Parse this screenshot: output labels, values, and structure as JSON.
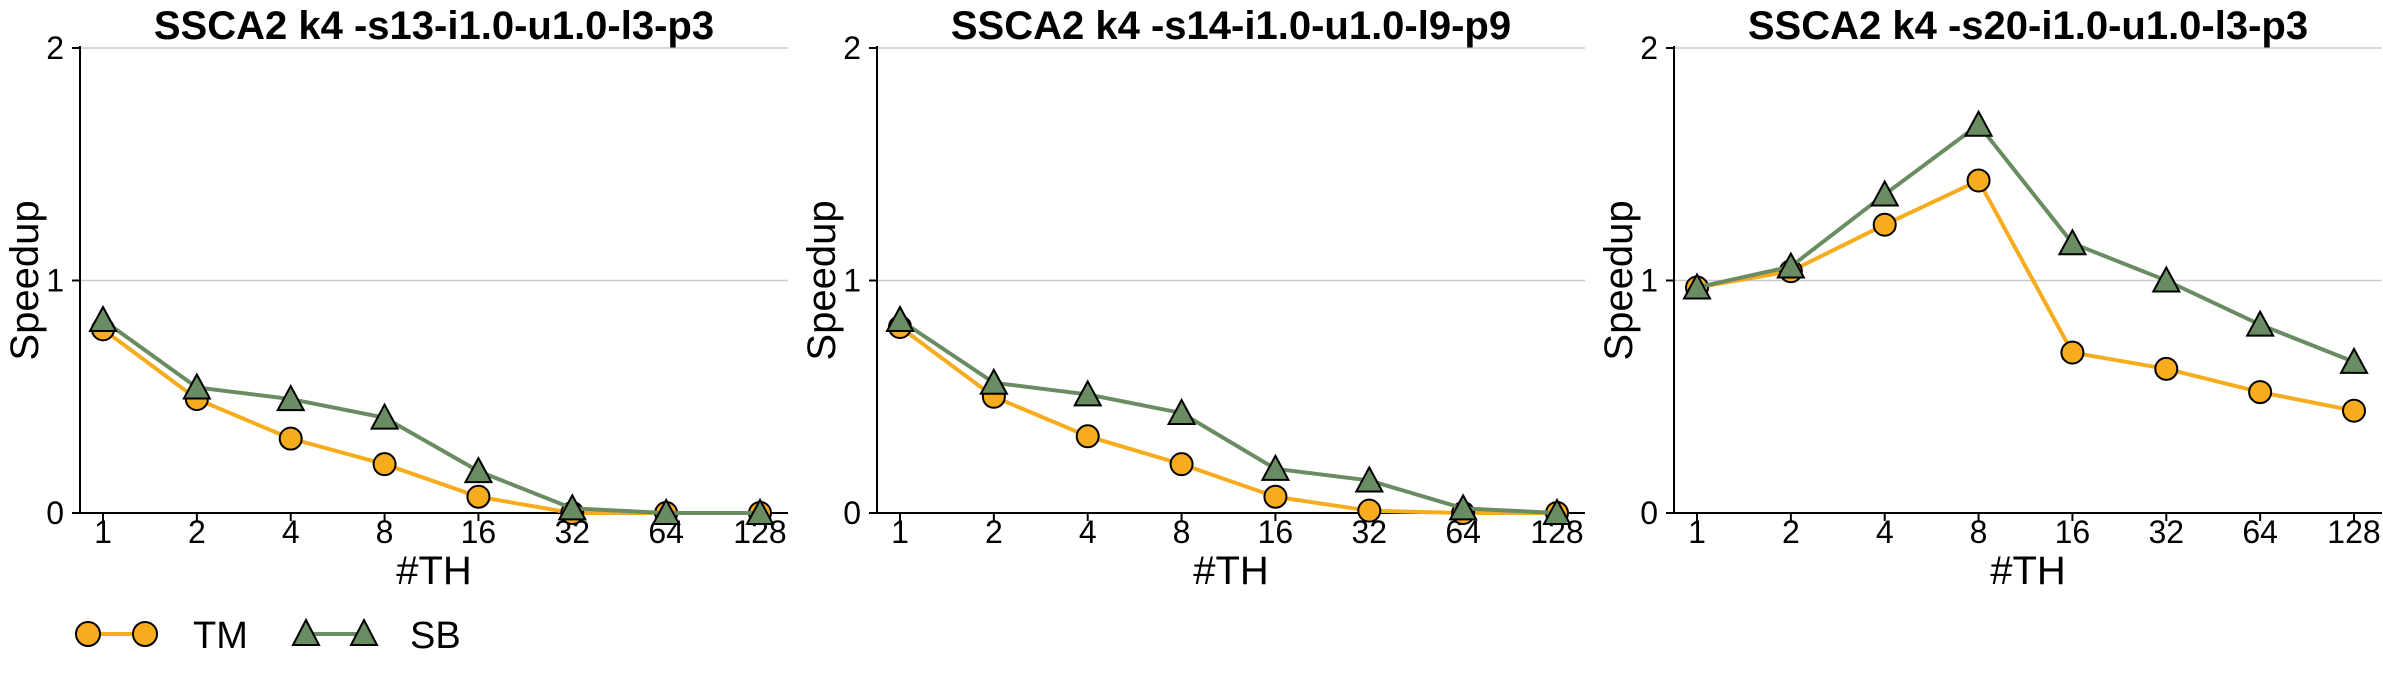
{
  "colors": {
    "series_tm_line": "#f7ac1e",
    "series_tm_marker": "#f7ac1e",
    "series_sb_line": "#6a8c62",
    "series_sb_marker": "#6a8c62",
    "grid": "#cccccc",
    "axis": "#000000"
  },
  "legend": {
    "placement": "bottom-left",
    "items": [
      {
        "label": "TM",
        "marker": "circle"
      },
      {
        "label": "SB",
        "marker": "triangle"
      }
    ]
  },
  "chart_data": [
    {
      "type": "line",
      "title": "SSCA2 k4 -s13-i1.0-u1.0-l3-p3",
      "xlabel": "#TH",
      "ylabel": "Speedup",
      "categories": [
        "1",
        "2",
        "4",
        "8",
        "16",
        "32",
        "64",
        "128"
      ],
      "ylim": [
        0,
        2
      ],
      "yticks": [
        "0",
        "1",
        "2"
      ],
      "grid": "horizontal",
      "series": [
        {
          "name": "TM",
          "values": [
            0.79,
            0.49,
            0.32,
            0.21,
            0.07,
            0.0,
            0.0,
            0.0
          ]
        },
        {
          "name": "SB",
          "values": [
            0.83,
            0.54,
            0.49,
            0.41,
            0.18,
            0.02,
            0.0,
            0.0
          ]
        }
      ]
    },
    {
      "type": "line",
      "title": "SSCA2 k4 -s14-i1.0-u1.0-l9-p9",
      "xlabel": "#TH",
      "ylabel": "Speedup",
      "categories": [
        "1",
        "2",
        "4",
        "8",
        "16",
        "32",
        "64",
        "128"
      ],
      "ylim": [
        0,
        2
      ],
      "yticks": [
        "0",
        "1",
        "2"
      ],
      "grid": "horizontal",
      "series": [
        {
          "name": "TM",
          "values": [
            0.8,
            0.5,
            0.33,
            0.21,
            0.07,
            0.01,
            0.0,
            0.0
          ]
        },
        {
          "name": "SB",
          "values": [
            0.83,
            0.56,
            0.51,
            0.43,
            0.19,
            0.14,
            0.02,
            0.0
          ]
        }
      ]
    },
    {
      "type": "line",
      "title": "SSCA2 k4 -s20-i1.0-u1.0-l3-p3",
      "xlabel": "#TH",
      "ylabel": "Speedup",
      "categories": [
        "1",
        "2",
        "4",
        "8",
        "16",
        "32",
        "64",
        "128"
      ],
      "ylim": [
        0,
        2
      ],
      "yticks": [
        "0",
        "1",
        "2"
      ],
      "grid": "horizontal",
      "series": [
        {
          "name": "TM",
          "values": [
            0.97,
            1.04,
            1.24,
            1.43,
            0.69,
            0.62,
            0.52,
            0.44
          ]
        },
        {
          "name": "SB",
          "values": [
            0.97,
            1.06,
            1.37,
            1.67,
            1.16,
            1.0,
            0.81,
            0.65
          ]
        }
      ]
    }
  ]
}
